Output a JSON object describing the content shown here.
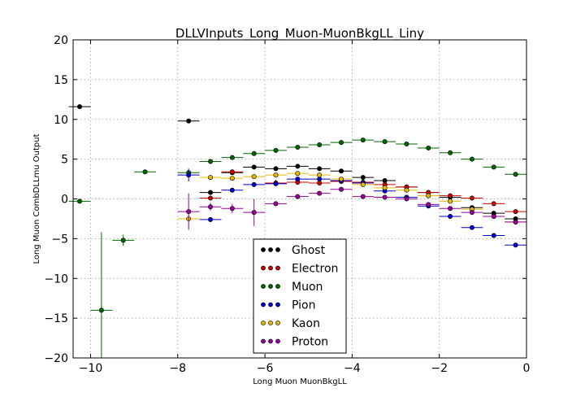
{
  "chart_data": {
    "type": "scatter",
    "title": "DLLVInputs_Long_Muon-MuonBkgLL_Liny",
    "xlabel": "Long Muon MuonBkgLL",
    "ylabel": "Long Muon CombDLLmu Output",
    "xlim": [
      -10.4,
      0
    ],
    "ylim": [
      -20,
      20
    ],
    "xticks": [
      -10,
      -8,
      -6,
      -4,
      -2,
      0
    ],
    "yticks": [
      -20,
      -15,
      -10,
      -5,
      0,
      5,
      10,
      15,
      20
    ],
    "xtick_labels": [
      "−10",
      "−8",
      "−6",
      "−4",
      "−2",
      "0"
    ],
    "ytick_labels": [
      "−20",
      "−15",
      "−10",
      "−5",
      "0",
      "5",
      "10",
      "15",
      "20"
    ],
    "grid": true,
    "legend_position": "bottom-center",
    "x_halfwidth": 0.25,
    "series": [
      {
        "name": "Ghost",
        "color": "#000000",
        "x": [
          -10.25,
          -7.75,
          -7.25,
          -6.75,
          -6.25,
          -5.75,
          -5.25,
          -4.75,
          -4.25,
          -3.75,
          -3.25,
          -2.75,
          -2.25,
          -1.75,
          -1.25,
          -0.75,
          -0.25
        ],
        "y": [
          11.6,
          9.8,
          0.8,
          3.3,
          4.0,
          3.8,
          4.1,
          3.8,
          3.5,
          2.7,
          2.3,
          1.5,
          0.8,
          0.2,
          -1.1,
          -1.8,
          -2.5
        ],
        "yerr": [
          0.1,
          0.2,
          0.3,
          0.2,
          0.2,
          0.2,
          0.2,
          0.2,
          0.2,
          0.2,
          0.2,
          0.2,
          0.2,
          0.2,
          0.2,
          0.2,
          0.2
        ]
      },
      {
        "name": "Electron",
        "color": "#cc0000",
        "x": [
          -7.25,
          -6.75,
          -5.75,
          -5.25,
          -4.75,
          -4.25,
          -3.75,
          -3.25,
          -2.75,
          -2.25,
          -1.75,
          -1.25,
          -0.75,
          -0.25
        ],
        "y": [
          0.1,
          3.4,
          2.0,
          2.1,
          2.0,
          2.2,
          2.1,
          1.8,
          1.5,
          0.8,
          0.4,
          0.1,
          -0.6,
          -1.6
        ],
        "yerr": [
          0.3,
          0.3,
          0.4,
          0.3,
          0.3,
          0.2,
          0.2,
          0.2,
          0.2,
          0.2,
          0.2,
          0.2,
          0.2,
          0.2
        ]
      },
      {
        "name": "Muon",
        "color": "#006600",
        "x": [
          -10.25,
          -9.75,
          -9.25,
          -8.75,
          -7.75,
          -7.25,
          -6.75,
          -6.25,
          -5.75,
          -5.25,
          -4.75,
          -4.25,
          -3.75,
          -3.25,
          -2.75,
          -2.25,
          -1.75,
          -1.25,
          -0.75,
          -0.25
        ],
        "y": [
          -0.3,
          -14.0,
          -5.2,
          3.4,
          3.3,
          4.7,
          5.2,
          5.7,
          6.1,
          6.5,
          6.8,
          7.1,
          7.4,
          7.2,
          6.9,
          6.4,
          5.8,
          5.0,
          4.0,
          3.1
        ],
        "yerr": [
          0.1,
          9.8,
          0.7,
          0.2,
          0.3,
          0.2,
          0.2,
          0.2,
          0.2,
          0.2,
          0.2,
          0.2,
          0.2,
          0.2,
          0.2,
          0.2,
          0.2,
          0.2,
          0.2,
          0.2
        ]
      },
      {
        "name": "Pion",
        "color": "#0000cc",
        "x": [
          -7.75,
          -7.25,
          -6.75,
          -6.25,
          -5.75,
          -5.25,
          -4.75,
          -4.25,
          -3.75,
          -3.25,
          -2.75,
          -2.25,
          -1.75,
          -1.25,
          -0.75,
          -0.25
        ],
        "y": [
          3.0,
          -2.6,
          1.1,
          1.8,
          1.9,
          2.5,
          2.5,
          2.3,
          2.0,
          1.0,
          0.2,
          -0.9,
          -2.2,
          -3.6,
          -4.6,
          -5.8
        ],
        "yerr": [
          0.8,
          0.3,
          0.2,
          0.2,
          0.2,
          0.2,
          0.2,
          0.2,
          0.2,
          0.2,
          0.2,
          0.2,
          0.2,
          0.2,
          0.2,
          0.2
        ]
      },
      {
        "name": "Kaon",
        "color": "#e6b800",
        "x": [
          -7.75,
          -7.25,
          -6.75,
          -6.25,
          -5.75,
          -5.25,
          -4.75,
          -4.25,
          -3.75,
          -3.25,
          -2.75,
          -2.25,
          -1.75,
          -1.25,
          -0.75,
          -0.25
        ],
        "y": [
          -2.5,
          2.7,
          2.6,
          2.8,
          3.0,
          3.2,
          3.0,
          2.5,
          1.8,
          1.4,
          1.1,
          0.4,
          -0.3,
          -1.3,
          -2.2,
          -2.9
        ],
        "yerr": [
          0.5,
          0.3,
          0.2,
          0.2,
          0.2,
          0.2,
          0.2,
          0.2,
          0.2,
          0.2,
          0.2,
          0.2,
          0.2,
          0.2,
          0.2,
          0.2
        ]
      },
      {
        "name": "Proton",
        "color": "#990099",
        "x": [
          -7.75,
          -7.25,
          -6.75,
          -6.25,
          -5.75,
          -5.25,
          -4.75,
          -4.25,
          -3.75,
          -3.25,
          -2.75,
          -2.25,
          -1.75,
          -1.25,
          -0.75,
          -0.25
        ],
        "y": [
          -1.6,
          -1.0,
          -1.2,
          -1.7,
          -0.6,
          0.3,
          0.7,
          1.2,
          0.3,
          0.2,
          0.0,
          -0.7,
          -1.2,
          -1.7,
          -2.2,
          -2.9
        ],
        "yerr": [
          2.3,
          0.5,
          0.6,
          1.7,
          0.3,
          0.2,
          0.2,
          0.2,
          0.2,
          0.2,
          0.2,
          0.2,
          0.2,
          0.2,
          0.2,
          0.2
        ]
      }
    ]
  }
}
